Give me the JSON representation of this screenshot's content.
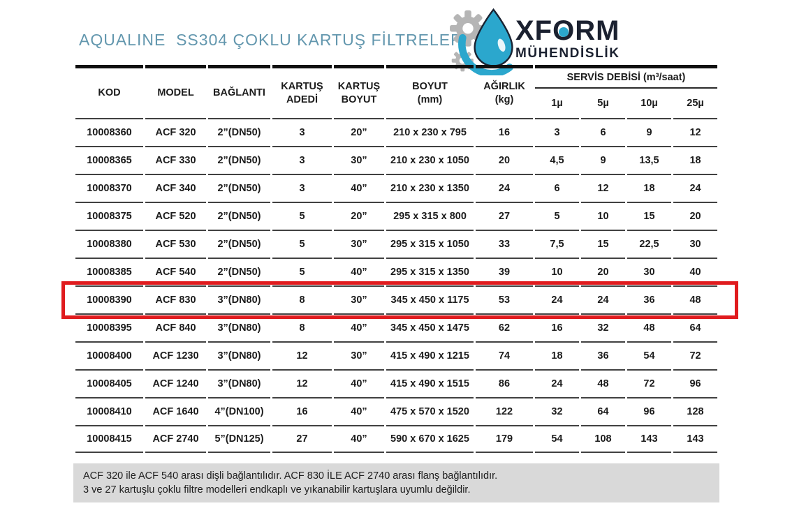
{
  "page": {
    "title": "AQUALINE  SS304 ÇOKLU KARTUŞ FİLTRELER",
    "title_color": "#6397ae"
  },
  "logo": {
    "name_pre": "XF",
    "name_o": "O",
    "name_post": "RM",
    "subtitle": "MÜHENDİSLİK",
    "accent_color": "#2ba7cd",
    "gear_color": "#b5b5b5",
    "text_color": "#1b2130"
  },
  "table": {
    "columns": [
      "KOD",
      "MODEL",
      "BAĞLANTI",
      "KARTUŞ\nADEDİ",
      "KARTUŞ\nBOYUT",
      "BOYUT\n(mm)",
      "AĞIRLIK\n(kg)"
    ],
    "group_header": {
      "label": "SERVİS DEBİSİ (m³/saat)",
      "sub_columns": [
        "1µ",
        "5µ",
        "10µ",
        "25µ"
      ]
    },
    "rows": [
      [
        "10008360",
        "ACF 320",
        "2”(DN50)",
        "3",
        "20”",
        "210 x 230 x 795",
        "16",
        "3",
        "6",
        "9",
        "12"
      ],
      [
        "10008365",
        "ACF 330",
        "2”(DN50)",
        "3",
        "30”",
        "210 x 230 x 1050",
        "20",
        "4,5",
        "9",
        "13,5",
        "18"
      ],
      [
        "10008370",
        "ACF 340",
        "2”(DN50)",
        "3",
        "40”",
        "210 x 230 x 1350",
        "24",
        "6",
        "12",
        "18",
        "24"
      ],
      [
        "10008375",
        "ACF 520",
        "2”(DN50)",
        "5",
        "20”",
        "295 x 315 x 800",
        "27",
        "5",
        "10",
        "15",
        "20"
      ],
      [
        "10008380",
        "ACF 530",
        "2”(DN50)",
        "5",
        "30”",
        "295 x 315 x 1050",
        "33",
        "7,5",
        "15",
        "22,5",
        "30"
      ],
      [
        "10008385",
        "ACF 540",
        "2”(DN50)",
        "5",
        "40”",
        "295 x 315 x 1350",
        "39",
        "10",
        "20",
        "30",
        "40"
      ],
      [
        "10008390",
        "ACF 830",
        "3”(DN80)",
        "8",
        "30”",
        "345 x 450 x 1175",
        "53",
        "24",
        "24",
        "36",
        "48"
      ],
      [
        "10008395",
        "ACF 840",
        "3”(DN80)",
        "8",
        "40”",
        "345 x 450 x 1475",
        "62",
        "16",
        "32",
        "48",
        "64"
      ],
      [
        "10008400",
        "ACF 1230",
        "3”(DN80)",
        "12",
        "30”",
        "415 x 490 x 1215",
        "74",
        "18",
        "36",
        "54",
        "72"
      ],
      [
        "10008405",
        "ACF 1240",
        "3”(DN80)",
        "12",
        "40”",
        "415 x 490 x 1515",
        "86",
        "24",
        "48",
        "72",
        "96"
      ],
      [
        "10008410",
        "ACF 1640",
        "4”(DN100)",
        "16",
        "40”",
        "475 x 570 x 1520",
        "122",
        "32",
        "64",
        "96",
        "128"
      ],
      [
        "10008415",
        "ACF 2740",
        "5”(DN125)",
        "27",
        "40”",
        "590 x 670 x 1625",
        "179",
        "54",
        "108",
        "143",
        "143"
      ]
    ],
    "highlighted_row_index": 6,
    "highlight_color": "#e01b1e"
  },
  "note": {
    "line1": "ACF 320 ile ACF 540 arası dişli bağlantılıdır. ACF 830 İLE ACF 2740 arası flanş bağlantılıdır.",
    "line2": "3 ve 27 kartuşlu çoklu filtre modelleri endkaplı ve yıkanabilir kartuşlara uyumlu değildir.",
    "bg_color": "#d9d9d9"
  }
}
